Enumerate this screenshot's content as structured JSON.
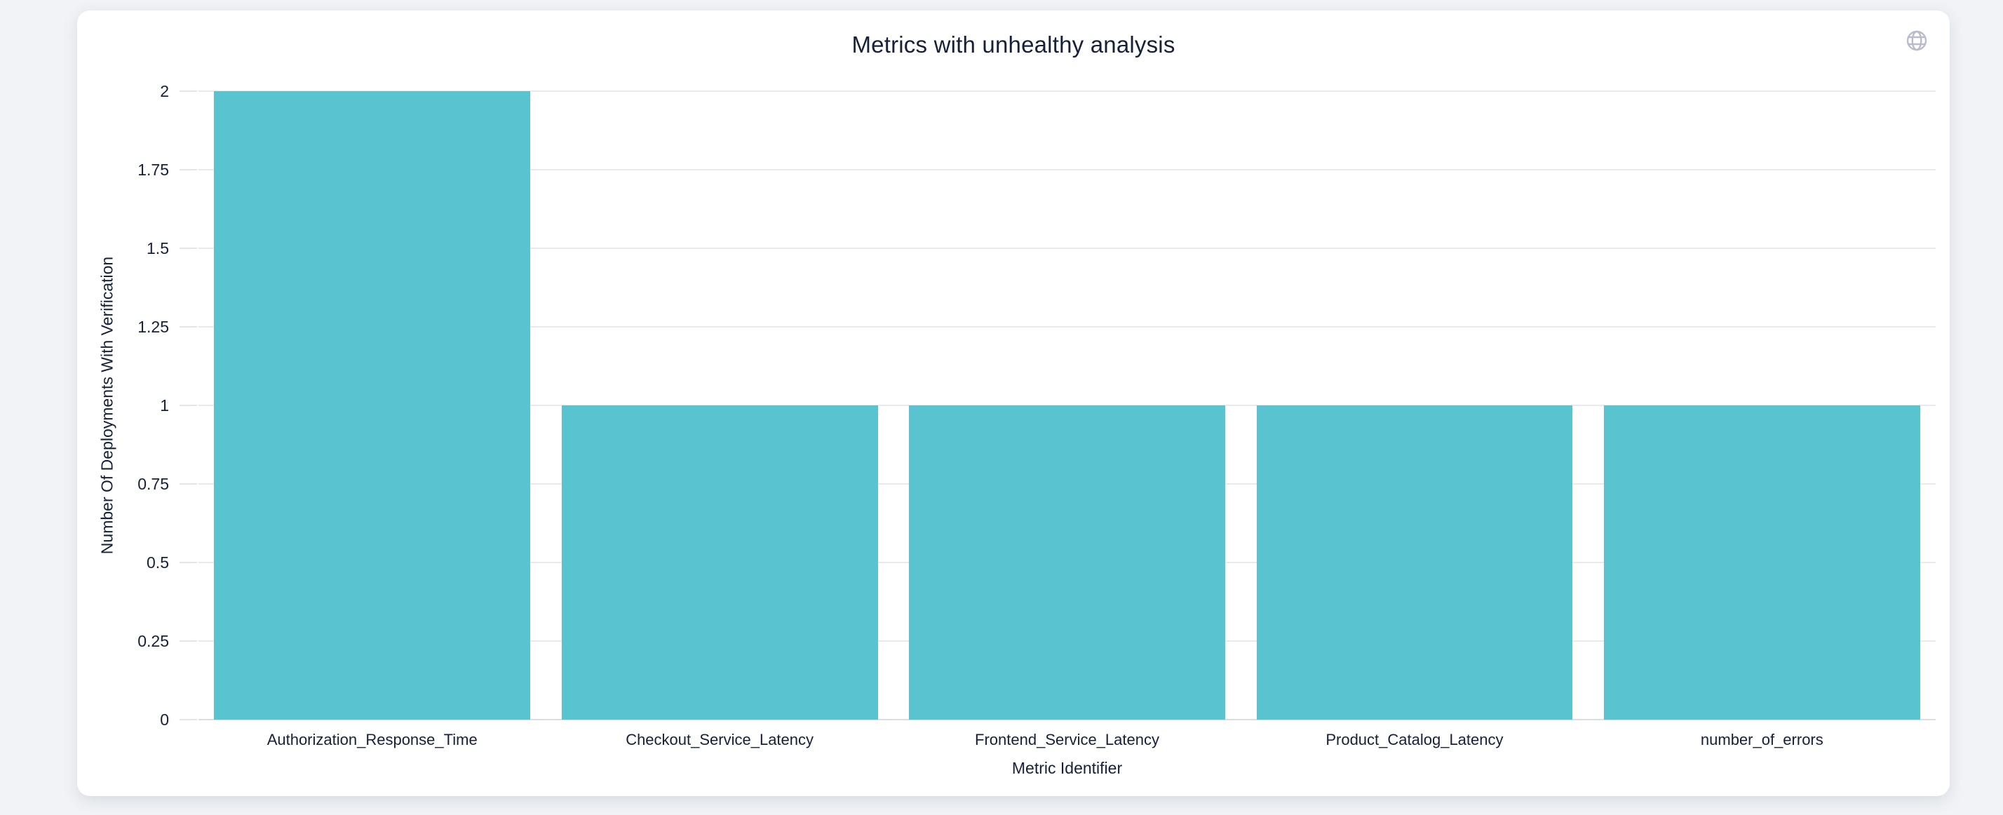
{
  "colors": {
    "page_background": "#f1f3f6",
    "card_background": "#ffffff",
    "text": "#162139",
    "gridline": "#e9e9ee",
    "axis_baseline": "#d9dde6",
    "globe_icon": "#b8bdc9",
    "bar": "#59c4d0"
  },
  "icons": [
    "globe-icon"
  ],
  "chart_data": {
    "type": "bar",
    "title": "Metrics with unhealthy analysis",
    "xlabel": "Metric Identifier",
    "ylabel": "Number Of Deployments With Verification",
    "categories": [
      "Authorization_Response_Time",
      "Checkout_Service_Latency",
      "Frontend_Service_Latency",
      "Product_Catalog_Latency",
      "number_of_errors"
    ],
    "values": [
      2,
      1,
      1,
      1,
      1
    ],
    "ylim": [
      0,
      2
    ],
    "yticks": [
      0,
      0.25,
      0.5,
      0.75,
      1,
      1.25,
      1.5,
      1.75,
      2
    ],
    "ytick_labels": [
      "0",
      "0.25",
      "0.5",
      "0.75",
      "1",
      "1.25",
      "1.5",
      "1.75",
      "2"
    ],
    "grid": true,
    "legend_position": "none",
    "bar_color": "#59c4d0"
  }
}
